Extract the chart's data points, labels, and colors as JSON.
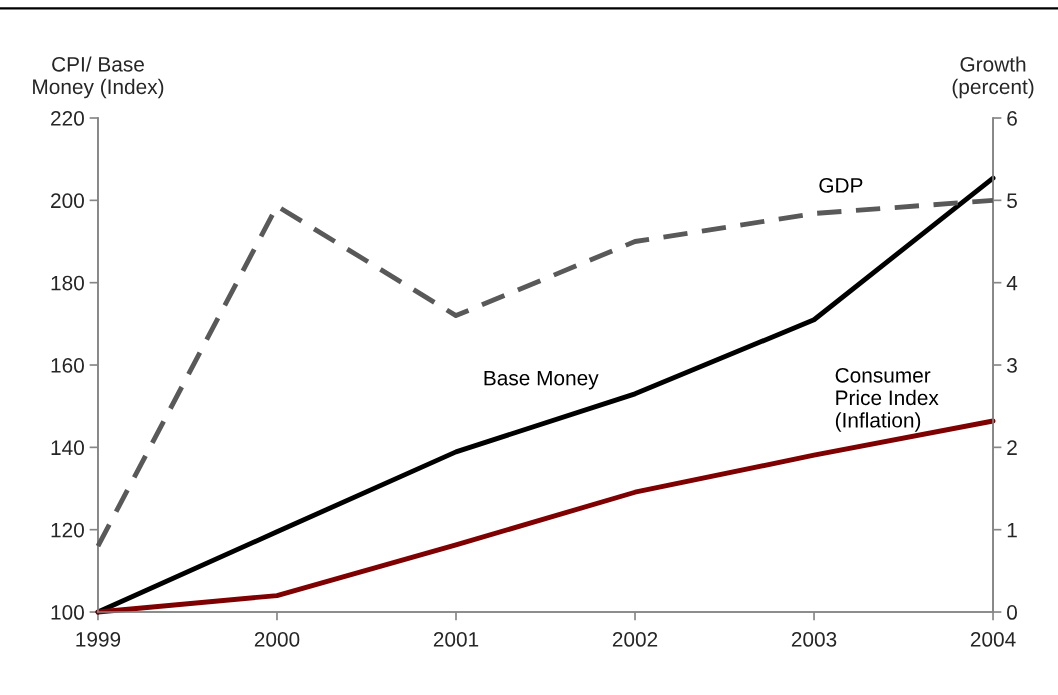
{
  "chart_data": {
    "type": "line",
    "ylabel": "CPI/ Base\nMoney (Index)",
    "y2label": "Growth\n(percent)",
    "x": [
      1999,
      2000,
      2001,
      2002,
      2003,
      2004
    ],
    "xlim": [
      1999,
      2004
    ],
    "xticks": [
      1999,
      2000,
      2001,
      2002,
      2003,
      2004
    ],
    "ylim": [
      100,
      220
    ],
    "yticks": [
      100,
      120,
      140,
      160,
      180,
      200,
      220
    ],
    "y2lim": [
      0,
      6
    ],
    "y2ticks": [
      0,
      1,
      2,
      3,
      4,
      5,
      6
    ],
    "grid": false,
    "legend": false,
    "marker": "none",
    "series": [
      {
        "name": "GDP",
        "color": "#595959",
        "axis": "y2",
        "line_style": "dashed",
        "values": [
          0.8,
          4.93,
          3.6,
          4.5,
          4.84,
          5.0
        ]
      },
      {
        "name": "Base Money",
        "color": "#000000",
        "line_style": "solid",
        "values": [
          100,
          119.5,
          138.9,
          153,
          171,
          205.4
        ]
      },
      {
        "name": "Consumer\nPrice Index\n(Inflation)",
        "color": "#7f0000",
        "line_style": "solid",
        "values": [
          100,
          104,
          116.3,
          129.1,
          138.1,
          146.4
        ]
      }
    ]
  }
}
